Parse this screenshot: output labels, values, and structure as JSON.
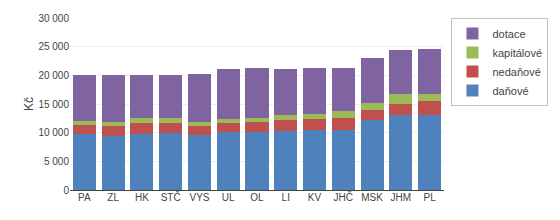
{
  "chart_data": {
    "type": "bar",
    "stacked": true,
    "ylabel": "Kč",
    "categories": [
      "PA",
      "ZL",
      "HK",
      "STČ",
      "VYS",
      "UL",
      "OL",
      "LI",
      "KV",
      "JHČ",
      "MSK",
      "JHM",
      "PL"
    ],
    "series": [
      {
        "name": "daňové",
        "color": "#4f81bd",
        "values": [
          9800,
          9400,
          9800,
          9900,
          9600,
          10100,
          10200,
          10300,
          10400,
          10400,
          12200,
          13000,
          13000
        ]
      },
      {
        "name": "nedaňové",
        "color": "#c0504d",
        "values": [
          1500,
          1800,
          1800,
          1700,
          1600,
          1600,
          1700,
          1900,
          2000,
          2200,
          1800,
          2000,
          2500
        ]
      },
      {
        "name": "kapitálové",
        "color": "#9bbb59",
        "values": [
          800,
          600,
          900,
          900,
          600,
          600,
          600,
          800,
          900,
          1200,
          1200,
          1700,
          1200
        ]
      },
      {
        "name": "dotace",
        "color": "#8064a2",
        "values": [
          7900,
          8200,
          7500,
          7600,
          8500,
          8800,
          8700,
          8100,
          7900,
          7500,
          7800,
          7700,
          7900
        ]
      }
    ],
    "ylim": [
      0,
      30000
    ],
    "yticks": [
      0,
      {
        "value": 5000,
        "label": "5 000"
      },
      {
        "value": 10000,
        "label": "10 000"
      },
      {
        "value": 15000,
        "label": "15 000"
      },
      {
        "value": 20000,
        "label": "20 000"
      },
      {
        "value": 25000,
        "label": "25 000"
      },
      {
        "value": 30000,
        "label": "30 000"
      }
    ],
    "grid": true,
    "legend": "right"
  }
}
